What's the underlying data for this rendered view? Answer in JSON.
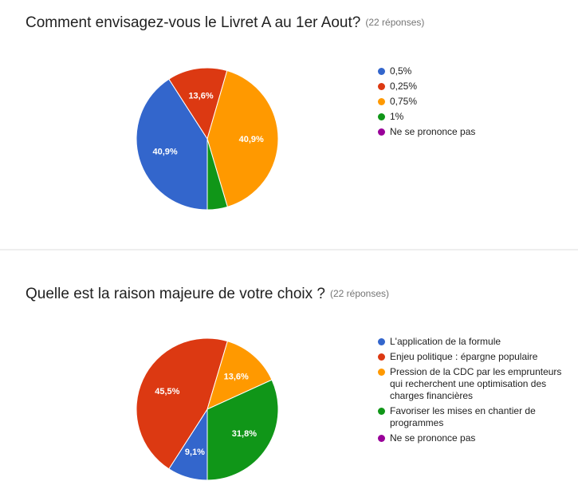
{
  "charts": [
    {
      "title": "Comment envisagez-vous le Livret A au 1er Aout?",
      "responses": "(22 réponses)"
    },
    {
      "title": "Quelle est la raison majeure de votre choix ?",
      "responses": "(22 réponses)"
    }
  ],
  "chart_data": [
    {
      "type": "pie",
      "title": "Comment envisagez-vous le Livret A au 1er Aout?",
      "labels": [
        "0,5%",
        "0,25%",
        "0,75%",
        "1%",
        "Ne se prononce pas"
      ],
      "values": [
        40.9,
        13.6,
        40.9,
        4.6,
        0
      ],
      "value_labels": [
        "40,9%",
        "13,6%",
        "40,9%",
        "",
        ""
      ],
      "colors": [
        "#3366cc",
        "#dc3912",
        "#ff9900",
        "#109618",
        "#990099"
      ],
      "legend": "right"
    },
    {
      "type": "pie",
      "title": "Quelle est la raison majeure de votre choix ?",
      "labels": [
        "L'application de la formule",
        "Enjeu politique : épargne populaire",
        "Pression de la CDC par les emprunteurs qui recherchent une optimisation des charges financières",
        "Favoriser les mises en chantier de programmes",
        "Ne se prononce pas"
      ],
      "values": [
        9.1,
        45.5,
        13.6,
        31.8,
        0
      ],
      "value_labels": [
        "9,1%",
        "45,5%",
        "13,6%",
        "31,8%",
        ""
      ],
      "colors": [
        "#3366cc",
        "#dc3912",
        "#ff9900",
        "#109618",
        "#990099"
      ],
      "legend": "right"
    }
  ]
}
